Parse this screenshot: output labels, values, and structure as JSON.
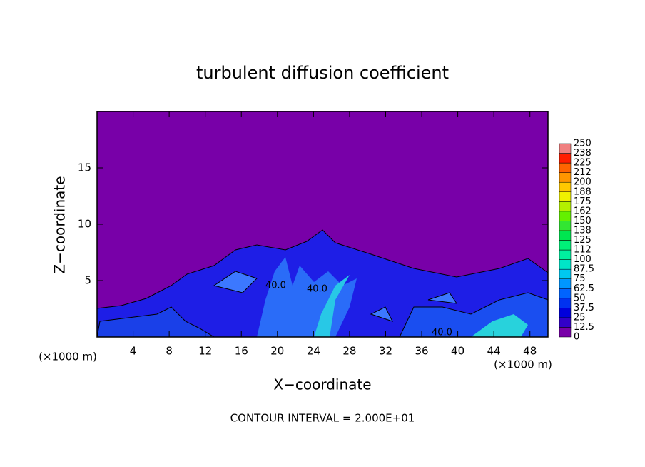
{
  "chart_data": {
    "type": "contour",
    "title": "turbulent diffusion coefficient",
    "x_label": "X−coordinate",
    "y_label": "Z−coordinate",
    "x_unit": "(×1000 m)",
    "y_unit": "(×1000 m)",
    "note": "CONTOUR INTERVAL = 2.000E+01",
    "contour_labels": [
      "40.0",
      "40.0",
      "40.0"
    ],
    "xlim": [
      0,
      50
    ],
    "xticks": [
      4,
      8,
      12,
      16,
      20,
      24,
      28,
      32,
      36,
      40,
      44,
      48
    ],
    "ylim": [
      0,
      20
    ],
    "yticks": [
      5,
      10,
      15
    ],
    "colorbar": {
      "levels": [
        0,
        12.5,
        25,
        37.5,
        50,
        62.5,
        75,
        87.5,
        100,
        112,
        125,
        138,
        150,
        162,
        175,
        188,
        200,
        212,
        225,
        238,
        250
      ],
      "colors": [
        "#7800a8",
        "#3200c8",
        "#0000dc",
        "#0032f0",
        "#0064ff",
        "#0096ff",
        "#00c8f0",
        "#00e6c8",
        "#00f0a0",
        "#00f078",
        "#00e650",
        "#32e632",
        "#64f000",
        "#b4f000",
        "#f0f000",
        "#ffc800",
        "#ff9600",
        "#ff6400",
        "#ff1e00",
        "#f08080"
      ]
    }
  }
}
